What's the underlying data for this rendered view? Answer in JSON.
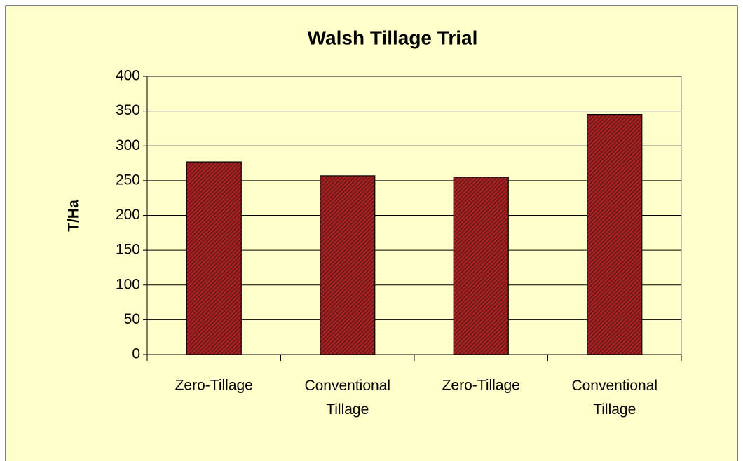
{
  "chart_data": {
    "type": "bar",
    "title": "Walsh Tillage Trial",
    "y_label": "T/Ha",
    "categories": [
      "Zero-Tillage",
      "Conventional Tillage",
      "Zero-Tillage",
      "Conventional Tillage"
    ],
    "values": [
      277,
      257,
      255,
      345
    ],
    "color": "#9b2020",
    "ylim": [
      0,
      400
    ],
    "yticks": [
      0,
      50,
      100,
      150,
      200,
      250,
      300,
      350,
      400
    ],
    "grid": true
  }
}
